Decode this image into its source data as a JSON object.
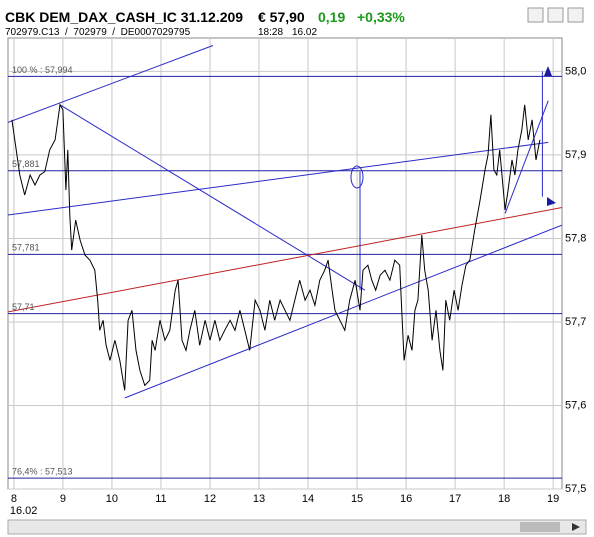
{
  "header": {
    "title": "CBK DEM_DAX_CASH_IC 31.12.209",
    "price": "€ 57,90",
    "change": "0,19",
    "change_pct": "+0,33%",
    "ids": "702979.C13  /  702979  /  DE0007029795",
    "time": "18:28",
    "date": "16.02"
  },
  "chart_data": {
    "type": "line",
    "xlim": [
      7.88,
      19.18
    ],
    "ylim": [
      57.5,
      58.04
    ],
    "xticks": [
      8,
      9,
      10,
      11,
      12,
      13,
      14,
      15,
      16,
      17,
      18,
      19
    ],
    "x_date_label": "16.02",
    "yticks": [
      {
        "value": 57.5,
        "label": "57,5"
      },
      {
        "value": 57.6,
        "label": "57,6"
      },
      {
        "value": 57.7,
        "label": "57,7"
      },
      {
        "value": 57.8,
        "label": "57,8"
      },
      {
        "value": 57.9,
        "label": "57,9"
      },
      {
        "value": 58.0,
        "label": "58,0"
      }
    ],
    "grid": true,
    "levels": [
      {
        "value": 57.994,
        "label": "100 % : 57,994"
      },
      {
        "value": 57.881,
        "label": "57,881"
      },
      {
        "value": 57.781,
        "label": "57,781"
      },
      {
        "value": 57.71,
        "label": "57,71"
      },
      {
        "value": 57.513,
        "label": "76,4% : 57,513"
      }
    ],
    "level_color": "#2020a0",
    "trend_lines": [
      {
        "color": "#2a2ac8",
        "x": [
          7.88,
          12.06
        ],
        "y": [
          57.939,
          58.031
        ]
      },
      {
        "color": "#2a2ac8",
        "x": [
          8.94,
          15.16
        ],
        "y": [
          57.96,
          57.738
        ]
      },
      {
        "color": "#2a2ac8",
        "x": [
          10.26,
          19.18
        ],
        "y": [
          57.609,
          57.816
        ]
      },
      {
        "color": "#c02020",
        "x": [
          7.88,
          19.18
        ],
        "y": [
          57.712,
          57.837
        ]
      },
      {
        "color": "#2a2ac8",
        "x": [
          7.88,
          18.9
        ],
        "y": [
          57.828,
          57.915
        ]
      },
      {
        "color": "#2a2ac8",
        "x": [
          15.06,
          15.06
        ],
        "y": [
          57.88,
          57.738
        ]
      },
      {
        "color": "#2a2ac8",
        "x": [
          18.02,
          18.9
        ],
        "y": [
          57.83,
          57.965
        ]
      },
      {
        "color": "#2a2ac8",
        "x": [
          18.78,
          18.78
        ],
        "y": [
          58.0,
          57.85
        ]
      }
    ],
    "x": [
      7.96,
      8.12,
      8.22,
      8.33,
      8.43,
      8.53,
      8.63,
      8.73,
      8.84,
      8.94,
      9.0,
      9.06,
      9.1,
      9.14,
      9.18,
      9.26,
      9.35,
      9.45,
      9.55,
      9.65,
      9.71,
      9.75,
      9.82,
      9.88,
      9.96,
      10.06,
      10.16,
      10.26,
      10.33,
      10.41,
      10.49,
      10.57,
      10.67,
      10.77,
      10.82,
      10.88,
      10.98,
      11.08,
      11.18,
      11.29,
      11.35,
      11.43,
      11.51,
      11.59,
      11.69,
      11.79,
      11.9,
      12.0,
      12.1,
      12.2,
      12.3,
      12.41,
      12.51,
      12.61,
      12.71,
      12.81,
      12.92,
      13.02,
      13.12,
      13.22,
      13.32,
      13.43,
      13.53,
      13.63,
      13.73,
      13.83,
      13.94,
      14.04,
      14.14,
      14.24,
      14.34,
      14.41,
      14.49,
      14.55,
      14.65,
      14.75,
      14.85,
      14.96,
      15.06,
      15.12,
      15.22,
      15.3,
      15.38,
      15.47,
      15.57,
      15.67,
      15.77,
      15.87,
      15.92,
      15.96,
      16.04,
      16.12,
      16.18,
      16.24,
      16.32,
      16.38,
      16.45,
      16.53,
      16.61,
      16.69,
      16.75,
      16.81,
      16.89,
      16.98,
      17.06,
      17.14,
      17.22,
      17.3,
      17.4,
      17.51,
      17.61,
      17.67,
      17.73,
      17.79,
      17.85,
      17.91,
      18.02,
      18.08,
      18.16,
      18.22,
      18.28,
      18.36,
      18.42,
      18.49,
      18.57,
      18.65,
      18.73
    ],
    "series": [
      {
        "color": "#000000",
        "values": [
          57.942,
          57.876,
          57.852,
          57.876,
          57.864,
          57.876,
          57.88,
          57.906,
          57.918,
          57.96,
          57.954,
          57.858,
          57.906,
          57.828,
          57.786,
          57.822,
          57.798,
          57.78,
          57.774,
          57.762,
          57.726,
          57.69,
          57.702,
          57.672,
          57.654,
          57.678,
          57.654,
          57.618,
          57.702,
          57.714,
          57.666,
          57.642,
          57.624,
          57.63,
          57.678,
          57.666,
          57.702,
          57.678,
          57.69,
          57.738,
          57.75,
          57.678,
          57.666,
          57.69,
          57.714,
          57.672,
          57.702,
          57.678,
          57.702,
          57.678,
          57.69,
          57.702,
          57.69,
          57.714,
          57.69,
          57.666,
          57.726,
          57.714,
          57.69,
          57.726,
          57.702,
          57.726,
          57.714,
          57.702,
          57.726,
          57.75,
          57.726,
          57.738,
          57.72,
          57.75,
          57.762,
          57.774,
          57.738,
          57.714,
          57.702,
          57.69,
          57.726,
          57.75,
          57.714,
          57.762,
          57.768,
          57.75,
          57.738,
          57.756,
          57.762,
          57.75,
          57.774,
          57.768,
          57.702,
          57.654,
          57.684,
          57.666,
          57.714,
          57.726,
          57.804,
          57.762,
          57.738,
          57.678,
          57.714,
          57.666,
          57.642,
          57.726,
          57.702,
          57.738,
          57.714,
          57.744,
          57.768,
          57.774,
          57.81,
          57.846,
          57.882,
          57.9,
          57.948,
          57.882,
          57.876,
          57.906,
          57.834,
          57.858,
          57.894,
          57.876,
          57.906,
          57.93,
          57.96,
          57.918,
          57.942,
          57.894,
          57.918
        ]
      }
    ]
  }
}
